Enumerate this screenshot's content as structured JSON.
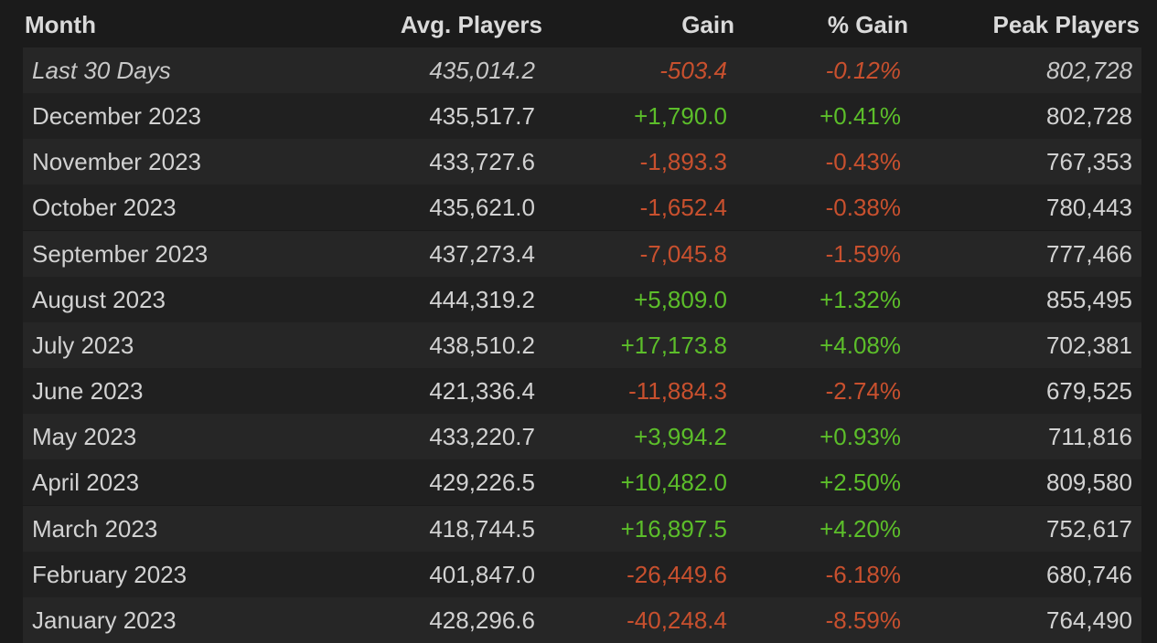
{
  "table": {
    "headers": [
      "Month",
      "Avg. Players",
      "Gain",
      "% Gain",
      "Peak Players"
    ],
    "rows": [
      [
        "Last 30 Days",
        "435,014.2",
        "-503.4",
        "-0.12%",
        "802,728"
      ],
      [
        "December 2023",
        "435,517.7",
        "+1,790.0",
        "+0.41%",
        "802,728"
      ],
      [
        "November 2023",
        "433,727.6",
        "-1,893.3",
        "-0.43%",
        "767,353"
      ],
      [
        "October 2023",
        "435,621.0",
        "-1,652.4",
        "-0.38%",
        "780,443"
      ],
      [
        "September 2023",
        "437,273.4",
        "-7,045.8",
        "-1.59%",
        "777,466"
      ],
      [
        "August 2023",
        "444,319.2",
        "+5,809.0",
        "+1.32%",
        "855,495"
      ],
      [
        "July 2023",
        "438,510.2",
        "+17,173.8",
        "+4.08%",
        "702,381"
      ],
      [
        "June 2023",
        "421,336.4",
        "-11,884.3",
        "-2.74%",
        "679,525"
      ],
      [
        "May 2023",
        "433,220.7",
        "+3,994.2",
        "+0.93%",
        "711,816"
      ],
      [
        "April 2023",
        "429,226.5",
        "+10,482.0",
        "+2.50%",
        "809,580"
      ],
      [
        "March 2023",
        "418,744.5",
        "+16,897.5",
        "+4.20%",
        "752,617"
      ],
      [
        "February 2023",
        "401,847.0",
        "-26,449.6",
        "-6.18%",
        "680,746"
      ],
      [
        "January 2023",
        "428,296.6",
        "-40,248.4",
        "-8.59%",
        "764,490"
      ]
    ]
  }
}
